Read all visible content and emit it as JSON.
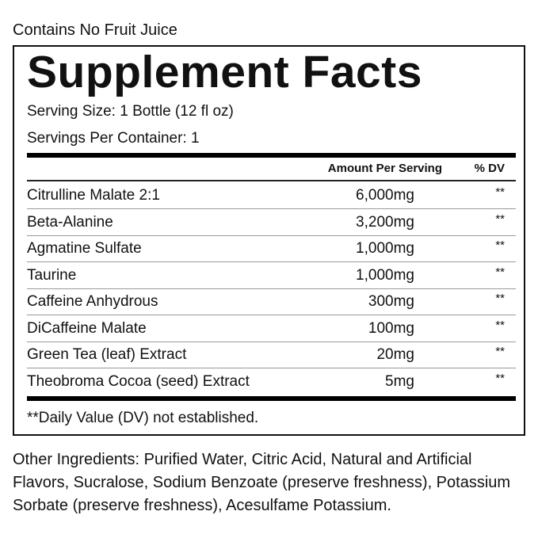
{
  "top_note": "Contains No Fruit Juice",
  "title": "Supplement Facts",
  "serving_size": "Serving Size: 1 Bottle (12 fl oz)",
  "servings_per_container": "Servings Per Container: 1",
  "header": {
    "amount": "Amount Per Serving",
    "dv": "% DV"
  },
  "rows": [
    {
      "name": "Citrulline Malate 2:1",
      "amount": "6,000mg",
      "dv": "**"
    },
    {
      "name": "Beta-Alanine",
      "amount": "3,200mg",
      "dv": "**"
    },
    {
      "name": "Agmatine Sulfate",
      "amount": "1,000mg",
      "dv": "**"
    },
    {
      "name": "Taurine",
      "amount": "1,000mg",
      "dv": "**"
    },
    {
      "name": "Caffeine Anhydrous",
      "amount": "300mg",
      "dv": "**"
    },
    {
      "name": "DiCaffeine Malate",
      "amount": "100mg",
      "dv": "**"
    },
    {
      "name": "Green Tea (leaf) Extract",
      "amount": "20mg",
      "dv": "**"
    },
    {
      "name": "Theobroma Cocoa (seed) Extract",
      "amount": "5mg",
      "dv": "**"
    }
  ],
  "footnote": "**Daily Value (DV) not established.",
  "other_ingredients": "Other Ingredients: Purified Water, Citric Acid, Natural and Artificial Flavors, Sucralose, Sodium Benzoate (preserve freshness), Potassium Sorbate (preserve freshness), Acesulfame Potassium."
}
